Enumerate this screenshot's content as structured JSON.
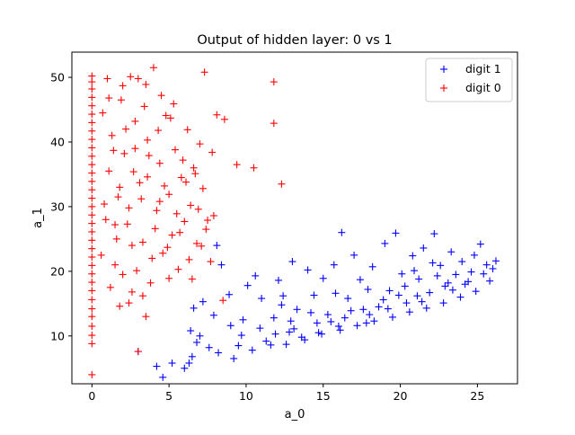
{
  "chart_data": {
    "type": "scatter",
    "title": "Output of hidden layer: 0 vs 1",
    "xlabel": "a_0",
    "ylabel": "a_1",
    "xlim": [
      -1.3,
      27.6
    ],
    "ylim": [
      2.6,
      53.9
    ],
    "xticks": [
      0,
      5,
      10,
      15,
      20,
      25
    ],
    "yticks": [
      10,
      20,
      30,
      40,
      50
    ],
    "grid": false,
    "legend_position": "top-right",
    "series": [
      {
        "name": "digit 1",
        "color": "#0000ff",
        "marker": "plus",
        "points": [
          [
            3.0,
            7.6
          ],
          [
            4.2,
            5.3
          ],
          [
            4.6,
            3.6
          ],
          [
            5.2,
            5.8
          ],
          [
            6.0,
            5.0
          ],
          [
            6.3,
            5.8
          ],
          [
            6.5,
            6.8
          ],
          [
            6.8,
            9.0
          ],
          [
            6.4,
            10.8
          ],
          [
            6.6,
            14.3
          ],
          [
            7.2,
            15.3
          ],
          [
            7.0,
            10.0
          ],
          [
            7.6,
            8.2
          ],
          [
            7.9,
            13.2
          ],
          [
            8.1,
            24.0
          ],
          [
            8.4,
            21.0
          ],
          [
            8.9,
            16.4
          ],
          [
            9.0,
            11.6
          ],
          [
            9.5,
            8.5
          ],
          [
            9.8,
            12.5
          ],
          [
            10.1,
            17.8
          ],
          [
            10.6,
            19.3
          ],
          [
            11.0,
            15.8
          ],
          [
            11.3,
            9.2
          ],
          [
            11.8,
            12.8
          ],
          [
            12.1,
            18.6
          ],
          [
            12.4,
            16.2
          ],
          [
            12.8,
            10.6
          ],
          [
            13.0,
            21.5
          ],
          [
            13.3,
            14.1
          ],
          [
            13.6,
            9.8
          ],
          [
            14.0,
            20.2
          ],
          [
            14.4,
            16.3
          ],
          [
            14.7,
            10.5
          ],
          [
            15.0,
            18.9
          ],
          [
            15.3,
            13.3
          ],
          [
            15.7,
            21.0
          ],
          [
            16.0,
            11.5
          ],
          [
            16.2,
            26.0
          ],
          [
            16.6,
            15.8
          ],
          [
            17.0,
            22.5
          ],
          [
            17.4,
            18.7
          ],
          [
            17.8,
            12.0
          ],
          [
            18.2,
            20.7
          ],
          [
            18.6,
            14.5
          ],
          [
            19.0,
            24.3
          ],
          [
            19.3,
            17.0
          ],
          [
            19.7,
            25.9
          ],
          [
            20.1,
            19.6
          ],
          [
            20.4,
            15.1
          ],
          [
            20.8,
            22.4
          ],
          [
            21.2,
            18.8
          ],
          [
            21.5,
            23.6
          ],
          [
            21.9,
            16.7
          ],
          [
            22.2,
            25.8
          ],
          [
            22.6,
            20.9
          ],
          [
            22.9,
            17.7
          ],
          [
            23.3,
            23.0
          ],
          [
            23.6,
            19.5
          ],
          [
            24.0,
            21.5
          ],
          [
            24.4,
            18.4
          ],
          [
            24.8,
            22.5
          ],
          [
            25.2,
            24.2
          ],
          [
            25.6,
            21.0
          ],
          [
            26.0,
            20.4
          ],
          [
            26.2,
            21.6
          ],
          [
            8.2,
            7.4
          ],
          [
            9.2,
            6.5
          ],
          [
            10.4,
            7.8
          ],
          [
            11.6,
            8.6
          ],
          [
            12.6,
            8.7
          ],
          [
            13.8,
            9.4
          ],
          [
            14.9,
            10.3
          ],
          [
            16.1,
            10.9
          ],
          [
            17.2,
            11.6
          ],
          [
            18.3,
            12.3
          ],
          [
            19.5,
            12.9
          ],
          [
            20.6,
            13.7
          ],
          [
            21.7,
            14.3
          ],
          [
            22.8,
            15.1
          ],
          [
            23.9,
            16.0
          ],
          [
            24.9,
            16.9
          ],
          [
            25.8,
            18.5
          ],
          [
            15.5,
            12.2
          ],
          [
            17.6,
            14.1
          ],
          [
            19.9,
            16.3
          ],
          [
            21.1,
            16.2
          ],
          [
            23.1,
            18.2
          ],
          [
            24.6,
            19.9
          ],
          [
            12.9,
            12.3
          ],
          [
            14.2,
            13.6
          ],
          [
            16.8,
            13.9
          ],
          [
            18.9,
            15.6
          ],
          [
            20.3,
            17.7
          ],
          [
            22.4,
            19.3
          ],
          [
            9.7,
            10.1
          ],
          [
            10.9,
            11.2
          ],
          [
            11.9,
            10.3
          ],
          [
            13.1,
            11.1
          ],
          [
            14.6,
            12.0
          ],
          [
            16.4,
            12.8
          ],
          [
            18.0,
            13.3
          ],
          [
            19.2,
            14.2
          ],
          [
            21.4,
            15.3
          ],
          [
            23.4,
            17.1
          ],
          [
            24.2,
            18.0
          ],
          [
            25.4,
            19.6
          ],
          [
            12.3,
            14.8
          ],
          [
            15.8,
            16.6
          ],
          [
            17.9,
            17.2
          ],
          [
            20.9,
            20.1
          ],
          [
            22.1,
            21.3
          ]
        ]
      },
      {
        "name": "digit 0",
        "color": "#ff0000",
        "marker": "plus",
        "points": [
          [
            0.0,
            4.0
          ],
          [
            0.0,
            8.8
          ],
          [
            0.0,
            10.1
          ],
          [
            0.0,
            11.5
          ],
          [
            0.0,
            13.0
          ],
          [
            0.0,
            14.2
          ],
          [
            0.0,
            15.6
          ],
          [
            0.0,
            17.0
          ],
          [
            0.0,
            18.3
          ],
          [
            0.0,
            19.6
          ],
          [
            0.0,
            20.9
          ],
          [
            0.0,
            22.2
          ],
          [
            0.0,
            23.5
          ],
          [
            0.0,
            24.8
          ],
          [
            0.0,
            26.1
          ],
          [
            0.0,
            27.4
          ],
          [
            0.0,
            28.7
          ],
          [
            0.0,
            30.0
          ],
          [
            0.0,
            31.3
          ],
          [
            0.0,
            32.6
          ],
          [
            0.0,
            33.9
          ],
          [
            0.0,
            35.2
          ],
          [
            0.0,
            36.5
          ],
          [
            0.0,
            37.8
          ],
          [
            0.0,
            39.1
          ],
          [
            0.0,
            40.4
          ],
          [
            0.0,
            41.7
          ],
          [
            0.0,
            43.0
          ],
          [
            0.0,
            44.3
          ],
          [
            0.0,
            45.6
          ],
          [
            0.0,
            46.9
          ],
          [
            0.0,
            48.2
          ],
          [
            0.0,
            49.3
          ],
          [
            0.0,
            50.2
          ],
          [
            0.6,
            22.5
          ],
          [
            0.9,
            28.0
          ],
          [
            1.1,
            35.5
          ],
          [
            1.3,
            41.0
          ],
          [
            1.5,
            21.0
          ],
          [
            1.7,
            31.5
          ],
          [
            1.0,
            49.8
          ],
          [
            1.9,
            46.5
          ],
          [
            2.1,
            38.2
          ],
          [
            2.3,
            27.3
          ],
          [
            2.6,
            16.8
          ],
          [
            2.8,
            43.2
          ],
          [
            2.5,
            50.1
          ],
          [
            3.1,
            33.7
          ],
          [
            3.3,
            24.5
          ],
          [
            3.5,
            48.9
          ],
          [
            3.6,
            40.3
          ],
          [
            3.8,
            18.2
          ],
          [
            4.0,
            51.5
          ],
          [
            4.2,
            29.4
          ],
          [
            4.4,
            36.7
          ],
          [
            4.6,
            22.8
          ],
          [
            4.8,
            44.1
          ],
          [
            5.0,
            31.9
          ],
          [
            5.2,
            25.6
          ],
          [
            5.4,
            38.8
          ],
          [
            5.6,
            20.3
          ],
          [
            5.8,
            34.5
          ],
          [
            6.0,
            27.7
          ],
          [
            6.2,
            41.9
          ],
          [
            6.4,
            30.2
          ],
          [
            6.6,
            36.0
          ],
          [
            6.8,
            24.3
          ],
          [
            7.0,
            39.7
          ],
          [
            7.2,
            32.8
          ],
          [
            7.3,
            50.8
          ],
          [
            7.5,
            27.9
          ],
          [
            7.7,
            21.5
          ],
          [
            7.9,
            28.6
          ],
          [
            8.1,
            44.2
          ],
          [
            8.6,
            43.5
          ],
          [
            9.4,
            36.5
          ],
          [
            10.5,
            36.0
          ],
          [
            11.8,
            49.3
          ],
          [
            11.8,
            42.9
          ],
          [
            12.3,
            33.5
          ],
          [
            3.0,
            7.6
          ],
          [
            3.5,
            13.0
          ],
          [
            1.2,
            17.5
          ],
          [
            2.0,
            19.5
          ],
          [
            2.9,
            20.1
          ],
          [
            1.6,
            25.0
          ],
          [
            2.4,
            29.8
          ],
          [
            3.2,
            31.2
          ],
          [
            4.1,
            26.6
          ],
          [
            1.8,
            33.0
          ],
          [
            2.7,
            35.4
          ],
          [
            3.7,
            37.9
          ],
          [
            4.7,
            33.2
          ],
          [
            5.5,
            28.9
          ],
          [
            6.1,
            33.8
          ],
          [
            6.9,
            29.6
          ],
          [
            7.4,
            26.5
          ],
          [
            1.4,
            38.7
          ],
          [
            2.2,
            42.0
          ],
          [
            3.4,
            45.5
          ],
          [
            4.3,
            41.8
          ],
          [
            5.1,
            43.7
          ],
          [
            5.9,
            37.2
          ],
          [
            6.7,
            35.1
          ],
          [
            0.8,
            30.4
          ],
          [
            1.5,
            27.2
          ],
          [
            2.6,
            24.0
          ],
          [
            3.9,
            22.0
          ],
          [
            4.9,
            23.7
          ],
          [
            5.7,
            26.0
          ],
          [
            6.3,
            21.8
          ],
          [
            7.1,
            23.9
          ],
          [
            0.7,
            44.5
          ],
          [
            1.1,
            46.8
          ],
          [
            2.0,
            48.7
          ],
          [
            3.0,
            49.8
          ],
          [
            4.5,
            47.2
          ],
          [
            5.3,
            45.9
          ],
          [
            2.8,
            39.0
          ],
          [
            3.6,
            34.6
          ],
          [
            4.4,
            30.8
          ],
          [
            5.0,
            18.9
          ],
          [
            3.3,
            16.2
          ],
          [
            2.4,
            15.1
          ],
          [
            1.8,
            14.6
          ],
          [
            6.5,
            18.8
          ],
          [
            8.5,
            15.5
          ],
          [
            7.8,
            38.4
          ]
        ]
      }
    ]
  }
}
